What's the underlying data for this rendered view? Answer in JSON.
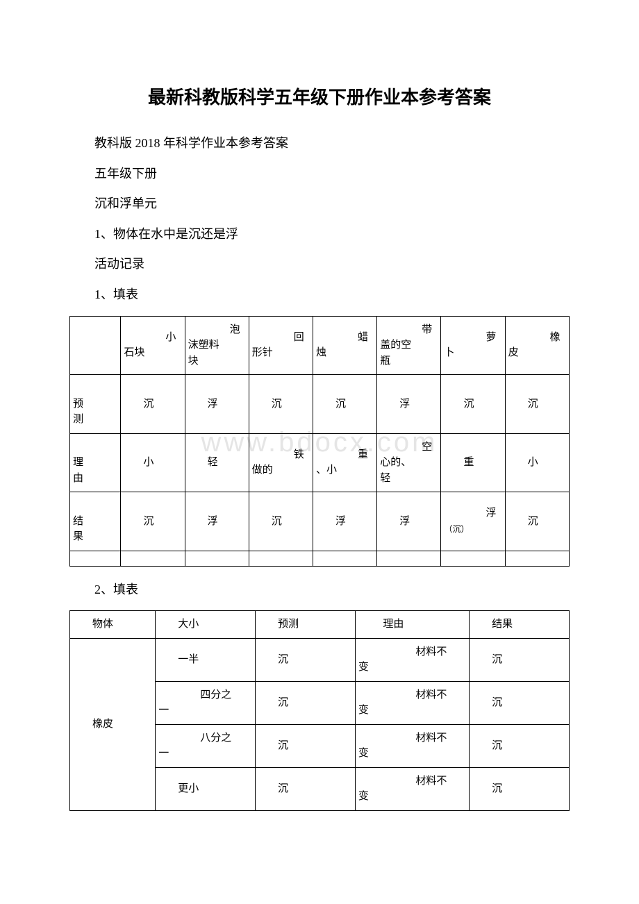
{
  "title": "最新科教版科学五年级下册作业本参考答案",
  "paragraphs": {
    "p1": "教科版 2018 年科学作业本参考答案",
    "p2": "五年级下册",
    "p3": "沉和浮单元",
    "p4": "1、物体在水中是沉还是浮",
    "p5": "活动记录",
    "p6": "1、填表",
    "p7": "2、填表"
  },
  "watermark": "www.bdocx.com",
  "table1": {
    "headers": [
      "",
      "小石块",
      "泡沫塑料块",
      "回形针",
      "蜡烛",
      "带盖的空瓶",
      "萝卜",
      "橡皮"
    ],
    "rows": [
      {
        "label": "预测",
        "cells": [
          "沉",
          "浮",
          "沉",
          "沉",
          "浮",
          "沉",
          "沉"
        ]
      },
      {
        "label": "理由",
        "cells": [
          "小",
          "轻",
          "铁做的",
          "重、小",
          "空心的、轻",
          "重",
          "小"
        ]
      },
      {
        "label": "结果",
        "cells": [
          "沉",
          "浮",
          "沉",
          "浮",
          "浮",
          "浮（沉）",
          "沉"
        ]
      }
    ]
  },
  "table2": {
    "headers": [
      "物体",
      "大小",
      "预测",
      "理由",
      "结果"
    ],
    "object": "橡皮",
    "rows": [
      {
        "size": "一半",
        "pred": "沉",
        "reason": "材料不变",
        "result": "沉"
      },
      {
        "size": "四分之一",
        "pred": "沉",
        "reason": "材料不变",
        "result": "沉"
      },
      {
        "size": "八分之一",
        "pred": "沉",
        "reason": "材料不变",
        "result": "沉"
      },
      {
        "size": "更小",
        "pred": "沉",
        "reason": "材料不变",
        "result": "沉"
      }
    ]
  },
  "colors": {
    "text": "#000000",
    "background": "#ffffff",
    "border": "#000000",
    "watermark": "rgba(180,180,180,0.35)"
  }
}
